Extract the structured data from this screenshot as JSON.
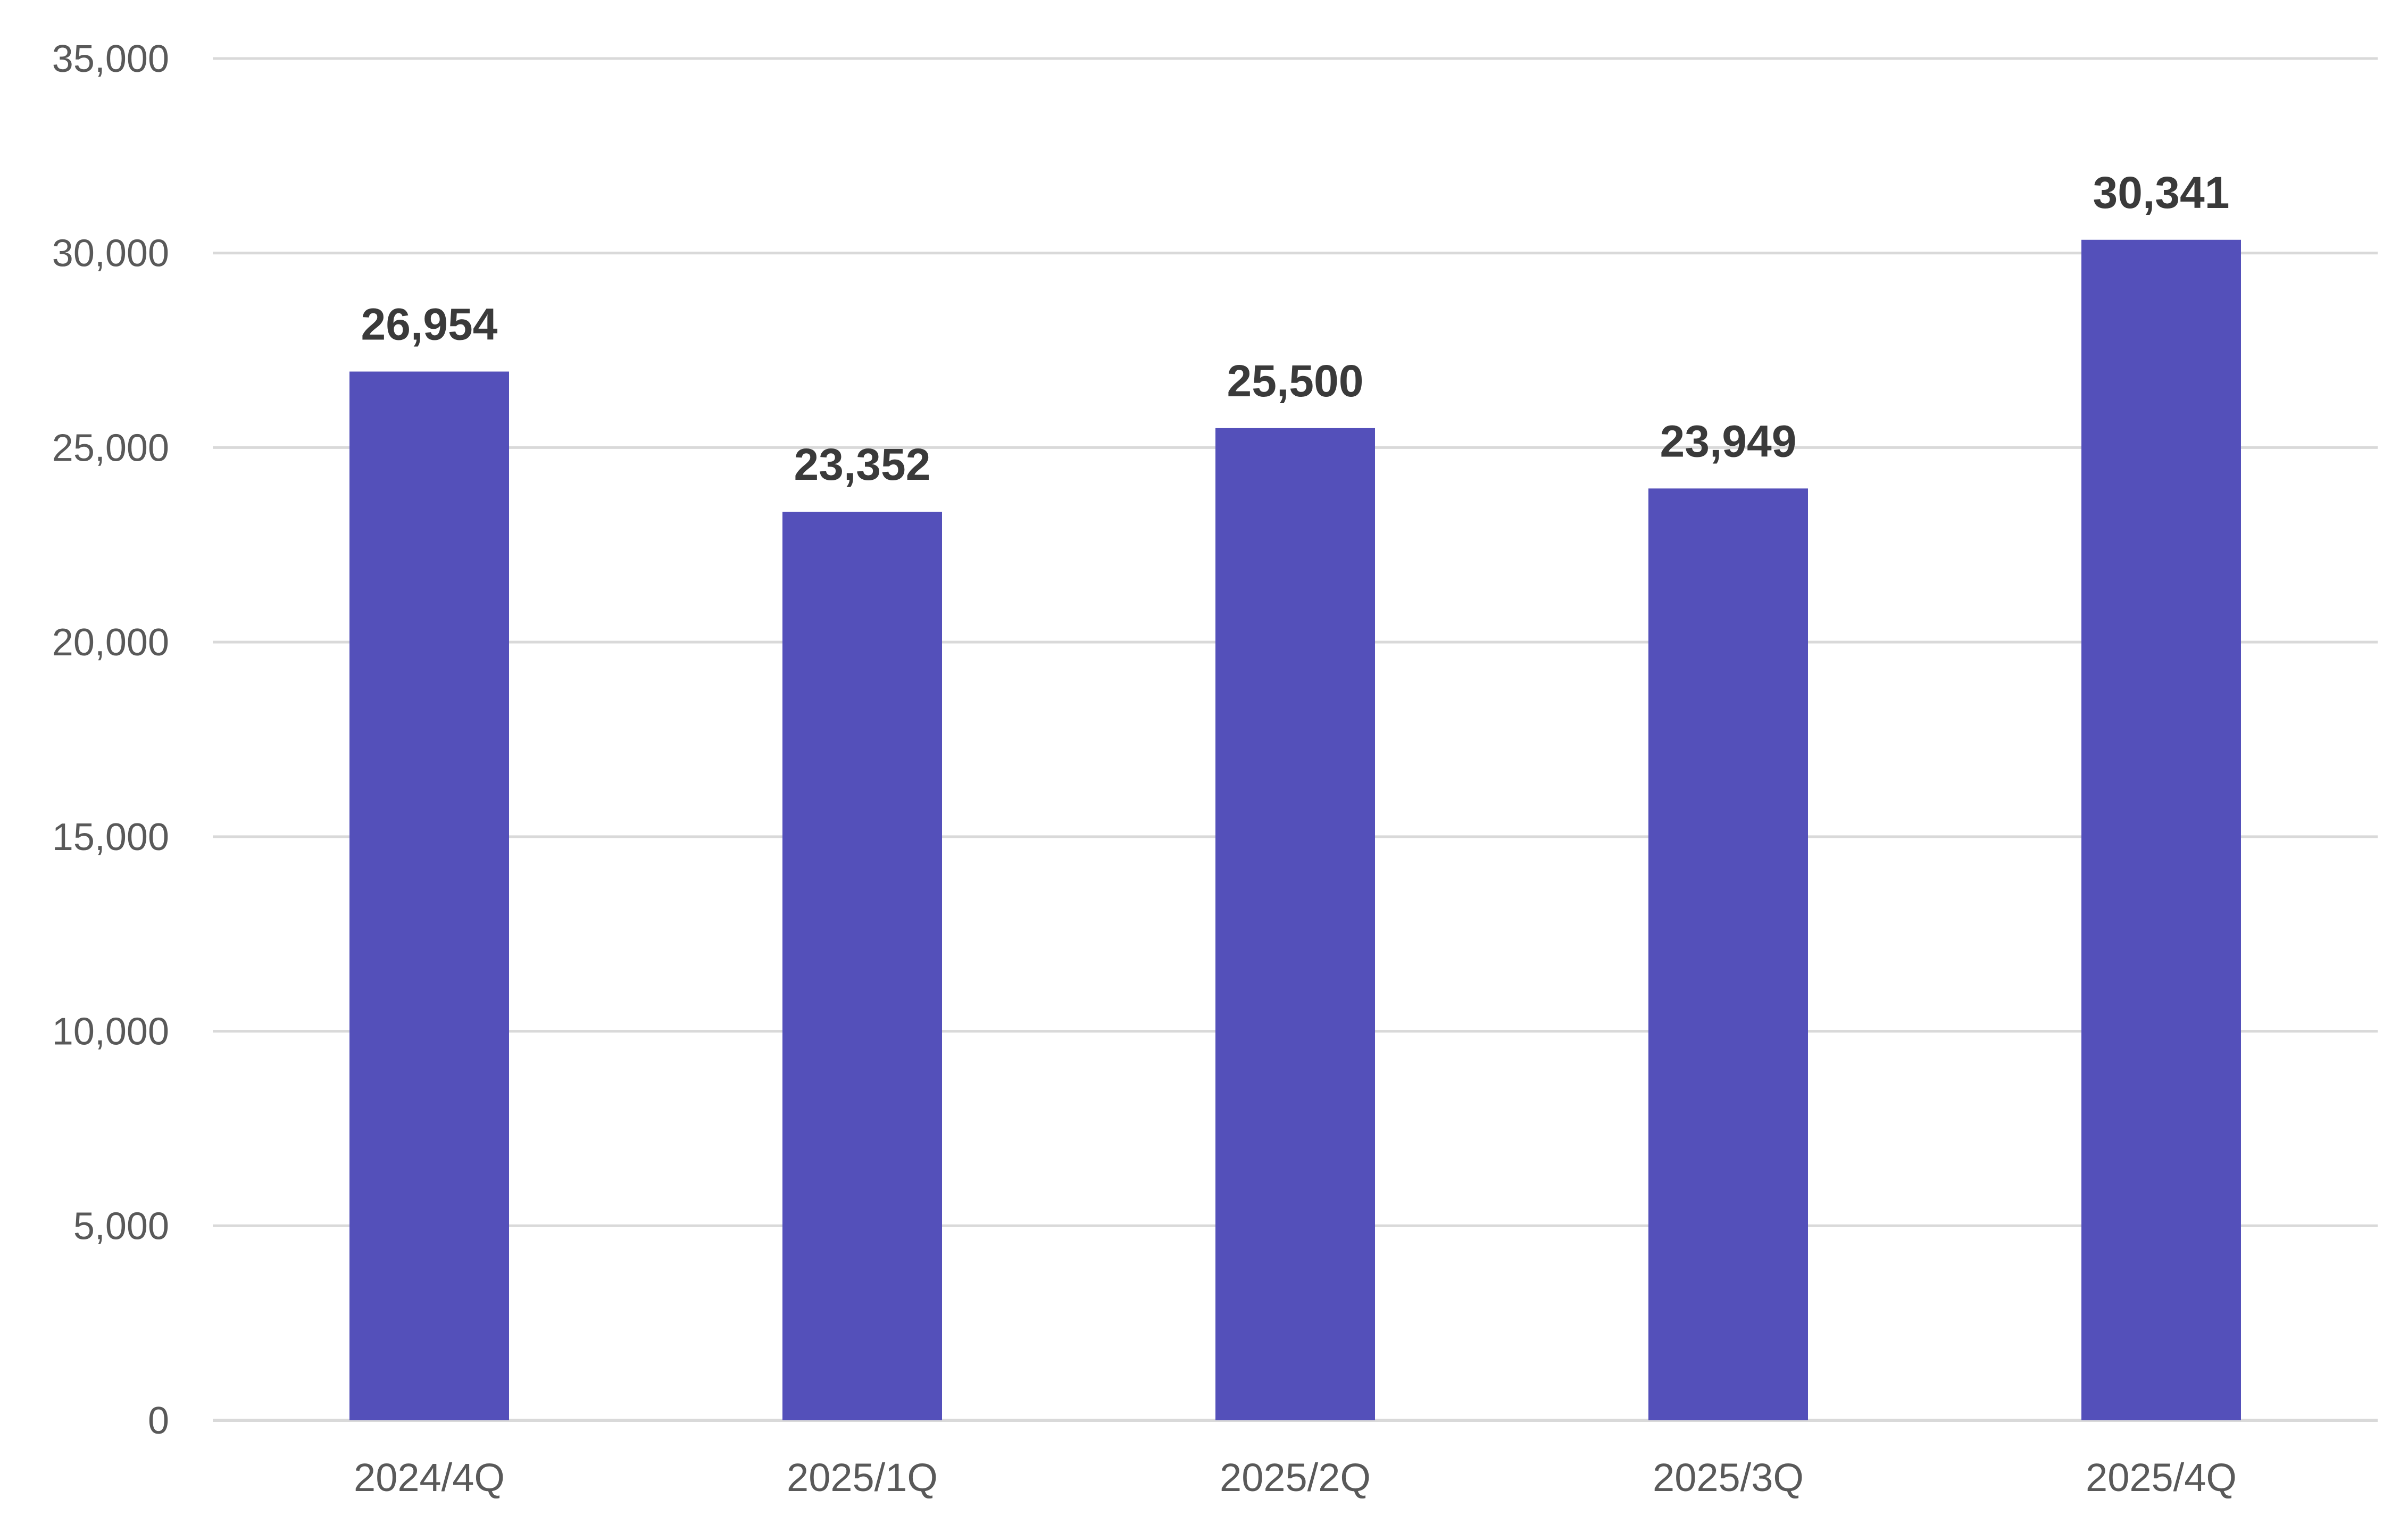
{
  "chart_data": {
    "type": "bar",
    "title": "",
    "xlabel": "",
    "ylabel": "",
    "categories": [
      "2024/4Q",
      "2025/1Q",
      "2025/2Q",
      "2025/3Q",
      "2025/4Q"
    ],
    "values": [
      26954,
      23352,
      25500,
      23949,
      30341
    ],
    "data_labels": [
      "26,954",
      "23,352",
      "25,500",
      "23,949",
      "30,341"
    ],
    "ylim": [
      0,
      35000
    ],
    "y_ticks": [
      0,
      5000,
      10000,
      15000,
      20000,
      25000,
      30000,
      35000
    ],
    "y_tick_labels": [
      "0",
      "5,000",
      "10,000",
      "15,000",
      "20,000",
      "25,000",
      "30,000",
      "35,000"
    ],
    "grid": true,
    "legend": "none",
    "bar_color": "#5450BA"
  }
}
